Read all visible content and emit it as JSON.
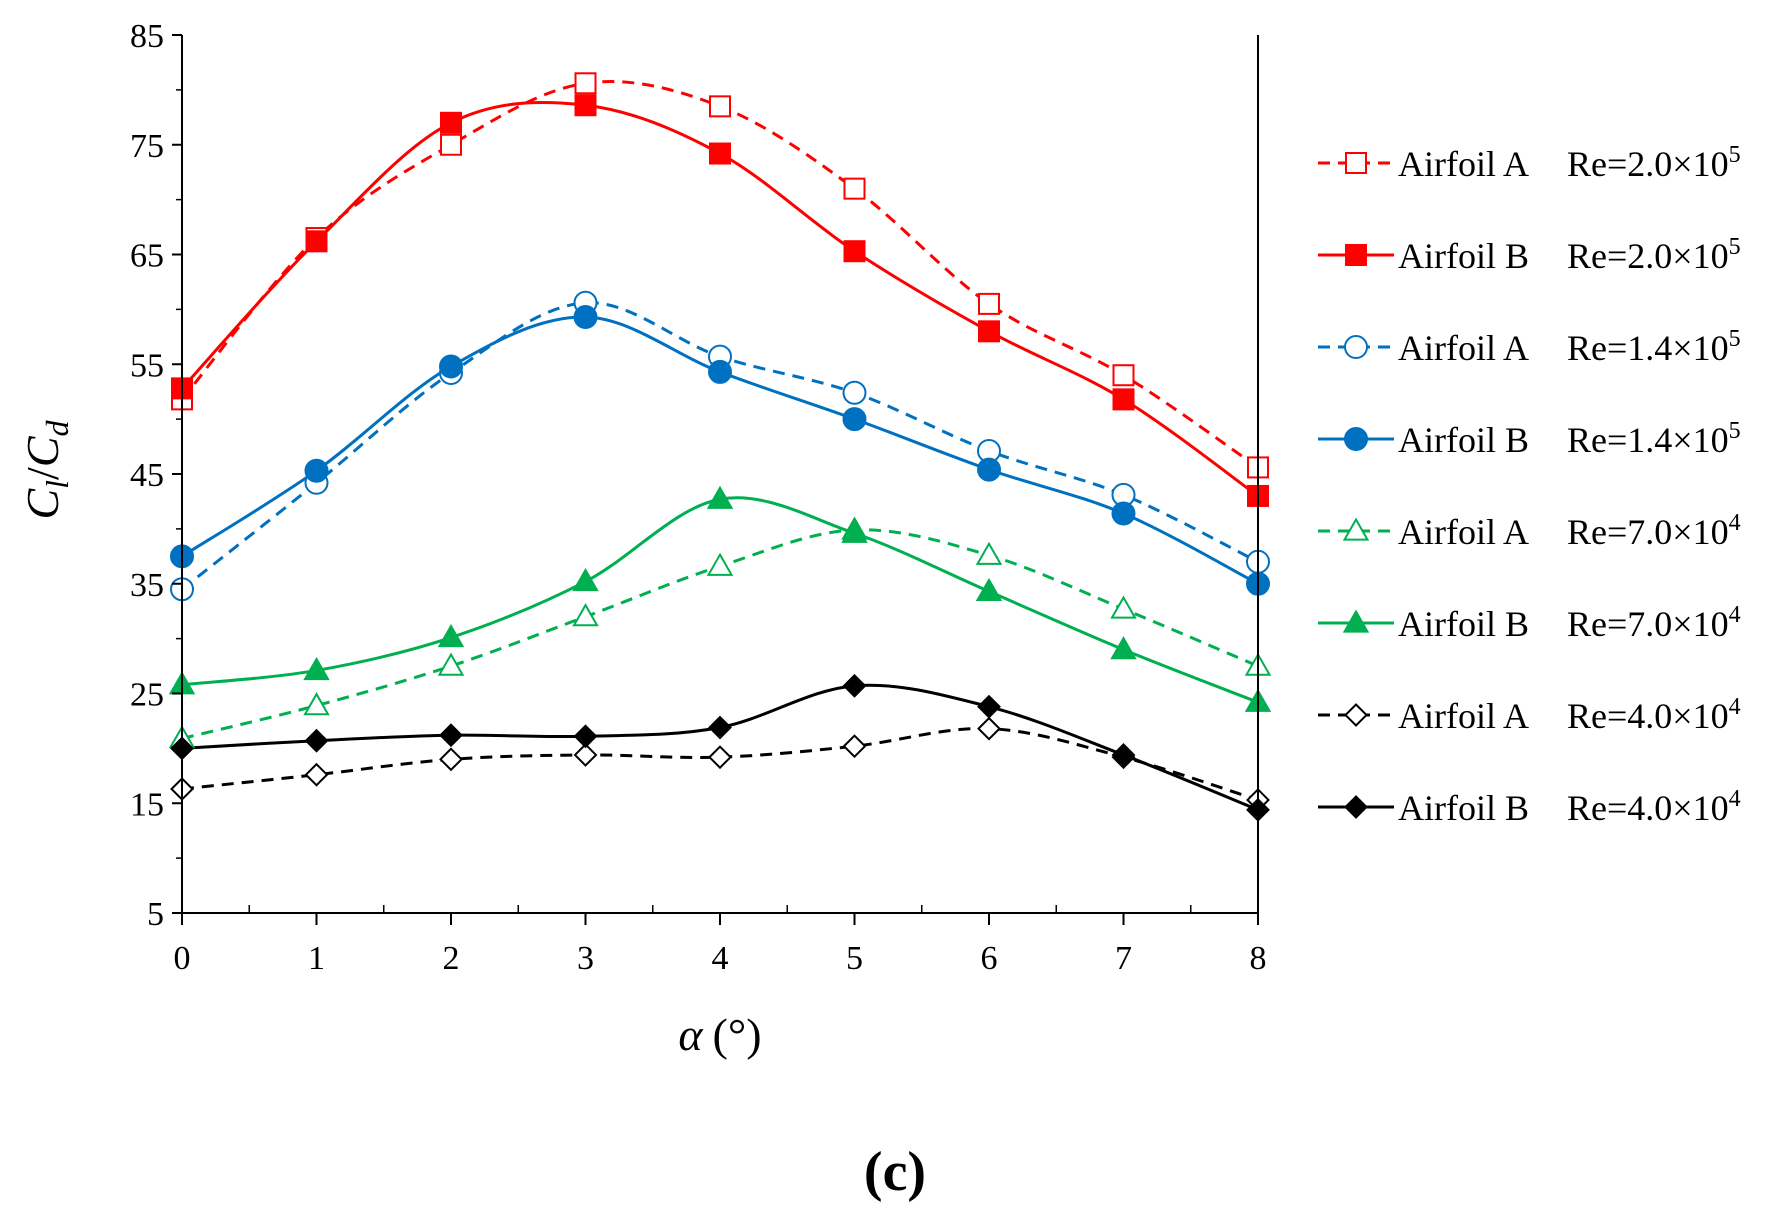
{
  "chart_data": {
    "type": "line",
    "xlabel": {
      "symbol": "α",
      "unit": "(°)"
    },
    "ylabel": {
      "base1": "C",
      "sub1": "l",
      "sep": "/",
      "base2": "C",
      "sub2": "d"
    },
    "xlim": [
      0,
      8
    ],
    "ylim": [
      5,
      85
    ],
    "xticks": [
      0,
      1,
      2,
      3,
      4,
      5,
      6,
      7,
      8
    ],
    "yticks": [
      5,
      15,
      25,
      35,
      45,
      55,
      65,
      75,
      85
    ],
    "grid": false,
    "legend_position": "right",
    "x": [
      0,
      1,
      2,
      3,
      4,
      5,
      6,
      7,
      8
    ],
    "series": [
      {
        "name": "Airfoil A",
        "re_text": "Re=2.0×10",
        "re_exp": "5",
        "color": "#ff0000",
        "dash": true,
        "marker": "square",
        "filled": false,
        "values": [
          51.8,
          66.5,
          75.0,
          80.6,
          78.5,
          71.0,
          60.5,
          54.0,
          45.6
        ]
      },
      {
        "name": "Airfoil B",
        "re_text": "Re=2.0×10",
        "re_exp": "5",
        "color": "#ff0000",
        "dash": false,
        "marker": "square",
        "filled": true,
        "values": [
          52.8,
          66.2,
          77.0,
          78.6,
          74.2,
          65.3,
          58.0,
          51.8,
          43.0
        ]
      },
      {
        "name": "Airfoil A",
        "re_text": "Re=1.4×10",
        "re_exp": "5",
        "color": "#0070c0",
        "dash": true,
        "marker": "circle",
        "filled": false,
        "values": [
          34.5,
          44.2,
          54.2,
          60.6,
          55.7,
          52.4,
          47.1,
          43.1,
          37.0
        ]
      },
      {
        "name": "Airfoil B",
        "re_text": "Re=1.4×10",
        "re_exp": "5",
        "color": "#0070c0",
        "dash": false,
        "marker": "circle",
        "filled": true,
        "values": [
          37.5,
          45.3,
          54.8,
          59.3,
          54.3,
          50.0,
          45.4,
          41.4,
          35.0
        ]
      },
      {
        "name": "Airfoil A",
        "re_text": "Re=7.0×10",
        "re_exp": "4",
        "color": "#00b050",
        "dash": true,
        "marker": "triangle",
        "filled": false,
        "values": [
          20.9,
          23.9,
          27.5,
          32.0,
          36.6,
          39.9,
          37.6,
          32.7,
          27.5
        ]
      },
      {
        "name": "Airfoil B",
        "re_text": "Re=7.0×10",
        "re_exp": "4",
        "color": "#00b050",
        "dash": false,
        "marker": "triangle",
        "filled": true,
        "values": [
          25.8,
          27.1,
          30.1,
          35.2,
          42.7,
          39.6,
          34.3,
          29.0,
          24.2
        ]
      },
      {
        "name": "Airfoil A",
        "re_text": "Re=4.0×10",
        "re_exp": "4",
        "color": "#000000",
        "dash": true,
        "marker": "diamond",
        "filled": false,
        "values": [
          16.3,
          17.6,
          19.0,
          19.4,
          19.2,
          20.2,
          21.8,
          19.2,
          15.3
        ]
      },
      {
        "name": "Airfoil B",
        "re_text": "Re=4.0×10",
        "re_exp": "4",
        "color": "#000000",
        "dash": false,
        "marker": "diamond",
        "filled": true,
        "values": [
          20.0,
          20.7,
          21.2,
          21.1,
          21.9,
          25.7,
          23.8,
          19.4,
          14.4
        ]
      }
    ],
    "panel_label": "(c)"
  }
}
